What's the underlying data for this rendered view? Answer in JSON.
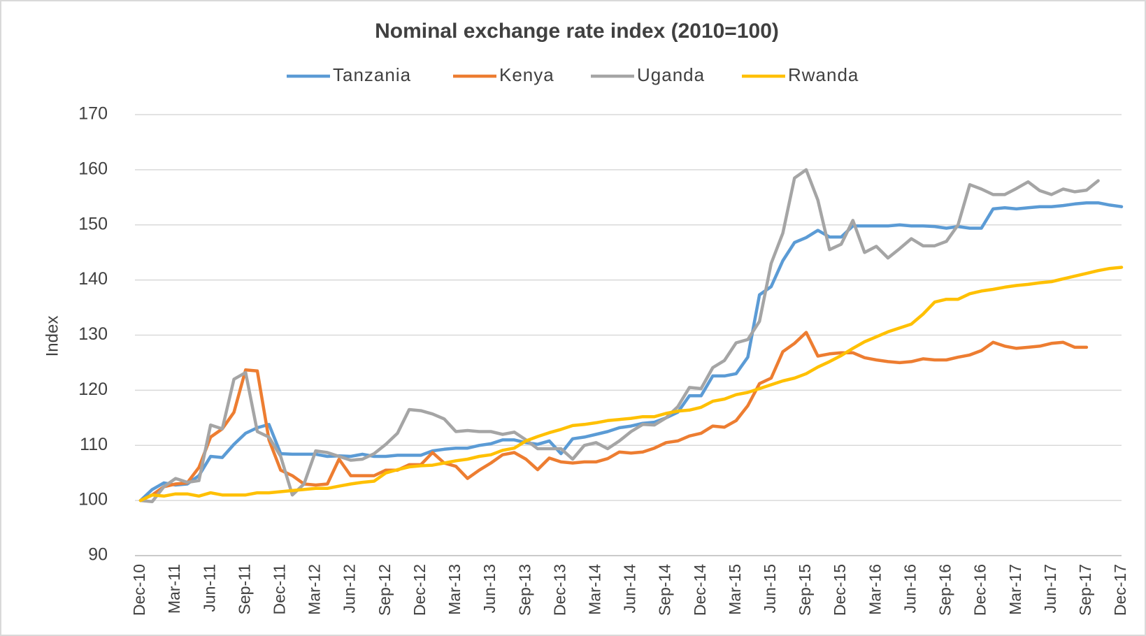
{
  "chart_data": {
    "type": "line",
    "title": "Nominal exchange rate index (2010=100)",
    "y_label": "Index",
    "categories": [
      "Dec-10",
      null,
      null,
      "Mar-11",
      null,
      null,
      "Jun-11",
      null,
      null,
      "Sep-11",
      null,
      null,
      "Dec-11",
      null,
      null,
      "Mar-12",
      null,
      null,
      "Jun-12",
      null,
      null,
      "Sep-12",
      null,
      null,
      "Dec-12",
      null,
      null,
      "Mar-13",
      null,
      null,
      "Jun-13",
      null,
      null,
      "Sep-13",
      null,
      null,
      "Dec-13",
      null,
      null,
      "Mar-14",
      null,
      null,
      "Jun-14",
      null,
      null,
      "Sep-14",
      null,
      null,
      "Dec-14",
      null,
      null,
      "Mar-15",
      null,
      null,
      "Jun-15",
      null,
      null,
      "Sep-15",
      null,
      null,
      "Dec-15",
      null,
      null,
      "Mar-16",
      null,
      null,
      "Jun-16",
      null,
      null,
      "Sep-16",
      null,
      null,
      "Dec-16",
      null,
      null,
      "Mar-17",
      null,
      null,
      "Jun-17",
      null,
      null,
      "Sep-17",
      null,
      null,
      "Dec-17"
    ],
    "series": [
      {
        "name": "Tanzania",
        "color": "#5b9bd5",
        "values": [
          100,
          102,
          103.2,
          102.8,
          103,
          104.5,
          108,
          107.8,
          110.2,
          112.2,
          113.2,
          113.8,
          108.5,
          108.4,
          108.4,
          108.4,
          108,
          108.1,
          108,
          108.4,
          108,
          108,
          108.2,
          108.2,
          108.2,
          109,
          109.3,
          109.5,
          109.5,
          110,
          110.3,
          111,
          111,
          110.5,
          110.2,
          110.8,
          108.5,
          111.2,
          111.5,
          112,
          112.5,
          113.2,
          113.5,
          114,
          114.2,
          115,
          116,
          119,
          119,
          122.6,
          122.6,
          123,
          126,
          137.3,
          138.8,
          143.5,
          146.8,
          147.7,
          149,
          147.8,
          147.8,
          149.8,
          149.8,
          149.8,
          149.8,
          150,
          149.8,
          149.8,
          149.7,
          149.4,
          149.7,
          149.4,
          149.4,
          152.9,
          153.1,
          152.9,
          153.1,
          153.3,
          153.3,
          153.5,
          153.8,
          154,
          154,
          153.6,
          153.3
        ]
      },
      {
        "name": "Kenya",
        "color": "#ed7d31",
        "values": [
          100,
          101,
          102.5,
          103,
          103.2,
          106,
          111.5,
          113,
          116,
          123.7,
          123.5,
          111,
          105.5,
          104.5,
          103,
          102.8,
          103,
          107.5,
          104.5,
          104.5,
          104.5,
          105.5,
          105.5,
          106.5,
          106.5,
          108.7,
          106.8,
          106.2,
          104,
          105.5,
          106.8,
          108.3,
          108.7,
          107.5,
          105.6,
          107.7,
          107,
          106.8,
          107,
          107,
          107.6,
          108.8,
          108.6,
          108.8,
          109.5,
          110.5,
          110.8,
          111.7,
          112.2,
          113.5,
          113.3,
          114.5,
          117.2,
          121.2,
          122.2,
          127,
          128.5,
          130.5,
          126.2,
          126.6,
          126.8,
          126.8,
          125.9,
          125.5,
          125.2,
          125,
          125.2,
          125.7,
          125.5,
          125.5,
          126,
          126.4,
          127.2,
          128.7,
          128,
          127.6,
          127.8,
          128,
          128.5,
          128.7,
          127.8,
          127.8,
          null,
          null,
          null
        ]
      },
      {
        "name": "Uganda",
        "color": "#a5a5a5",
        "values": [
          100,
          99.8,
          102.5,
          104,
          103.3,
          103.6,
          113.7,
          113,
          122,
          123.2,
          112.5,
          111.5,
          108,
          101,
          103,
          109,
          108.7,
          108,
          107.3,
          107.5,
          108.5,
          110.2,
          112.2,
          116.5,
          116.3,
          115.7,
          114.8,
          112.5,
          112.7,
          112.5,
          112.5,
          112,
          112.4,
          111,
          109.4,
          109.4,
          109.4,
          107.5,
          110,
          110.5,
          109.4,
          110.8,
          112.5,
          113.8,
          113.7,
          115,
          117,
          120.5,
          120.3,
          124.1,
          125.4,
          128.6,
          129.2,
          132.5,
          143,
          148.5,
          158.5,
          160,
          154.5,
          145.5,
          146.5,
          150.8,
          145,
          146.1,
          144,
          145.7,
          147.5,
          146.2,
          146.2,
          147,
          150,
          157.3,
          156.5,
          155.5,
          155.5,
          156.6,
          157.8,
          156.2,
          155.5,
          156.5,
          156,
          156.3,
          158,
          null,
          null
        ]
      },
      {
        "name": "Rwanda",
        "color": "#ffc000",
        "values": [
          100,
          101,
          100.8,
          101.2,
          101.2,
          100.8,
          101.4,
          101,
          101,
          101,
          101.4,
          101.4,
          101.6,
          101.8,
          102,
          102.2,
          102.2,
          102.6,
          103,
          103.3,
          103.5,
          105,
          105.6,
          106.1,
          106.3,
          106.4,
          106.8,
          107.2,
          107.5,
          108,
          108.3,
          109.1,
          109.5,
          110.8,
          111.6,
          112.3,
          112.9,
          113.6,
          113.8,
          114.1,
          114.5,
          114.7,
          114.9,
          115.2,
          115.2,
          115.8,
          116.2,
          116.4,
          116.9,
          118,
          118.4,
          119.2,
          119.6,
          120.3,
          121,
          121.7,
          122.2,
          123,
          124.2,
          125.2,
          126.3,
          127.6,
          128.8,
          129.7,
          130.6,
          131.3,
          132,
          133.8,
          136,
          136.5,
          136.5,
          137.5,
          138,
          138.3,
          138.7,
          139,
          139.2,
          139.5,
          139.7,
          140.2,
          140.7,
          141.2,
          141.7,
          142.1,
          142.3
        ]
      }
    ],
    "ylim": [
      90,
      170
    ],
    "yticks": [
      90,
      100,
      110,
      120,
      130,
      140,
      150,
      160,
      170
    ],
    "grid": true,
    "legend": "top"
  }
}
